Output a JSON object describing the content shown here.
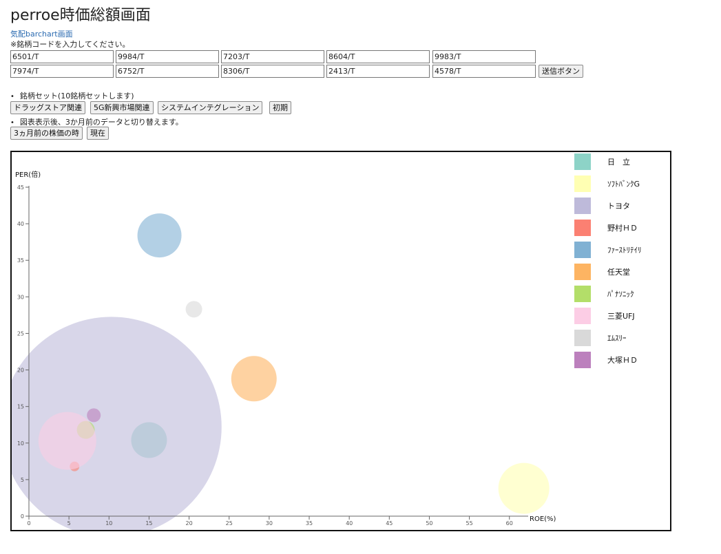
{
  "page": {
    "title": "perroe時価総額画面",
    "link_text": "気配barchart画面",
    "instruction": "※銘柄コードを入力してください。",
    "code_inputs": [
      "6501/T",
      "9984/T",
      "7203/T",
      "8604/T",
      "9983/T",
      "7974/T",
      "6752/T",
      "8306/T",
      "2413/T",
      "4578/T"
    ],
    "send_button": "送信ボタン",
    "set_label": "銘柄セット(10銘柄セットします)",
    "set_buttons": [
      "ドラッグストア関連",
      "5G新興市場関連",
      "システムインテグレーション",
      "初期"
    ],
    "toggle_label": "図表表示後、3か月前のデータと切り替えます。",
    "toggle_buttons": [
      "3ヵ月前の株価の時",
      "現在"
    ]
  },
  "chart_data": {
    "type": "scatter",
    "xlabel": "ROE(%)",
    "ylabel": "PER(倍)",
    "xlim": [
      0,
      62
    ],
    "ylim": [
      0,
      45
    ],
    "x_ticks": [
      0,
      5,
      10,
      15,
      20,
      25,
      30,
      35,
      40,
      45,
      50,
      55,
      60
    ],
    "y_ticks": [
      0,
      5,
      10,
      15,
      20,
      25,
      30,
      35,
      40,
      45
    ],
    "legend_position": "top-right",
    "series": [
      {
        "name": "日　立",
        "x": 15.0,
        "y": 10.4,
        "r": 26,
        "color": "#8dd3c7"
      },
      {
        "name": "ｿﾌﾄﾊﾞﾝｸG",
        "x": 61.8,
        "y": 3.8,
        "r": 37,
        "color": "#ffffb3"
      },
      {
        "name": "トヨタ",
        "x": 10.3,
        "y": 12.2,
        "r": 160,
        "color": "#bebada"
      },
      {
        "name": "野村ＨＤ",
        "x": 5.7,
        "y": 6.8,
        "r": 7,
        "color": "#fb8072"
      },
      {
        "name": "ﾌｧｰｽﾄﾘﾃｲﾘ",
        "x": 16.3,
        "y": 38.4,
        "r": 32,
        "color": "#80b1d3"
      },
      {
        "name": "任天堂",
        "x": 28.1,
        "y": 18.8,
        "r": 33,
        "color": "#fdb462"
      },
      {
        "name": "ﾊﾟﾅｿﾆｯｸ",
        "x": 7.1,
        "y": 11.8,
        "r": 13,
        "color": "#b3de69"
      },
      {
        "name": "三菱UFJ",
        "x": 4.8,
        "y": 10.3,
        "r": 42,
        "color": "#fccde5"
      },
      {
        "name": "ｴﾑｽﾘｰ",
        "x": 20.6,
        "y": 28.3,
        "r": 12,
        "color": "#d9d9d9"
      },
      {
        "name": "大塚ＨＤ",
        "x": 8.1,
        "y": 13.8,
        "r": 10,
        "color": "#bc80bd"
      }
    ]
  }
}
